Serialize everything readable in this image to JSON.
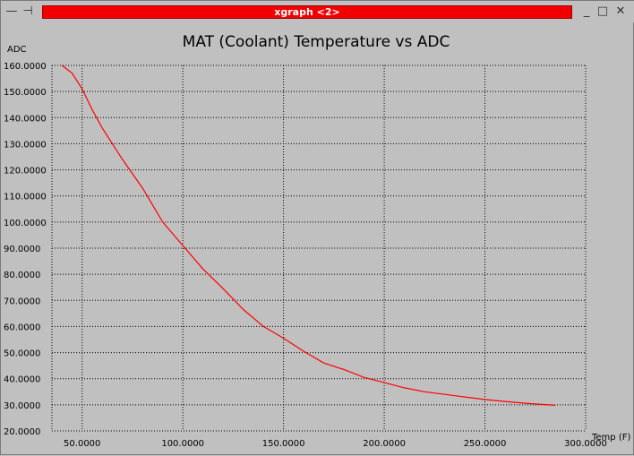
{
  "window": {
    "title": "xgraph <2>",
    "menu_glyph": "—",
    "pin_glyph": "⊣",
    "minimize_glyph": "_",
    "maximize_glyph": "□",
    "close_glyph": "✕"
  },
  "colors": {
    "background": "#c0c0c0",
    "titlebar_accent": "#f20000",
    "series": "#ff0000",
    "grid": "#000000"
  },
  "chart_data": {
    "type": "line",
    "title": "MAT (Coolant) Temperature vs ADC",
    "xlabel": "Temp (F)",
    "ylabel": "ADC",
    "xlim": [
      35,
      300
    ],
    "ylim": [
      20,
      160
    ],
    "grid": true,
    "x_ticks": [
      50,
      100,
      150,
      200,
      250,
      300
    ],
    "x_tick_labels": [
      "50.0000",
      "100.0000",
      "150.0000",
      "200.0000",
      "250.0000",
      "300.0000"
    ],
    "y_ticks": [
      20,
      30,
      40,
      50,
      60,
      70,
      80,
      90,
      100,
      110,
      120,
      130,
      140,
      150,
      160
    ],
    "y_tick_labels": [
      "20.0000",
      "30.0000",
      "40.0000",
      "50.0000",
      "60.0000",
      "70.0000",
      "80.0000",
      "90.0000",
      "100.0000",
      "110.0000",
      "120.0000",
      "130.0000",
      "140.0000",
      "150.0000",
      "160.0000"
    ],
    "series": [
      {
        "x": [
          40,
          45,
          50,
          55,
          60,
          70,
          80,
          90,
          100,
          110,
          120,
          130,
          140,
          150,
          160,
          170,
          180,
          190,
          200,
          210,
          220,
          230,
          240,
          250,
          260,
          270,
          285
        ],
        "y": [
          160,
          157,
          151,
          143,
          136,
          124,
          113,
          100,
          91,
          82,
          74.5,
          66.5,
          60,
          55.5,
          50.5,
          46,
          43.5,
          40.5,
          38.5,
          36.5,
          35,
          34,
          33,
          32,
          31.3,
          30.6,
          29.8
        ]
      }
    ]
  }
}
